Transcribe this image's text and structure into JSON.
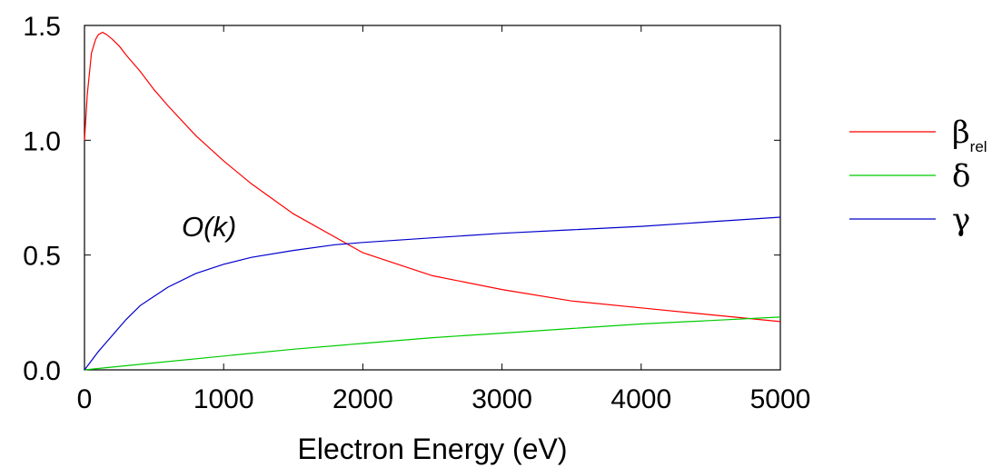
{
  "chart_data": {
    "type": "line",
    "xlabel": "Electron Energy (eV)",
    "ylabel": "",
    "annotation": "O(k)",
    "xlim": [
      0,
      5000
    ],
    "ylim": [
      0,
      1.5
    ],
    "x_ticks": [
      0,
      1000,
      2000,
      3000,
      4000,
      5000
    ],
    "x_tick_labels": [
      "0",
      "1000",
      "2000",
      "3000",
      "4000",
      "5000"
    ],
    "y_ticks": [
      0,
      0.5,
      1.0,
      1.5
    ],
    "y_tick_labels": [
      "0.0",
      "0.5",
      "1.0",
      "1.5"
    ],
    "grid": false,
    "legend_position": "right",
    "series": [
      {
        "name": "β",
        "name_subscript": "rel",
        "color": "#ff0000",
        "x": [
          0,
          20,
          50,
          80,
          100,
          130,
          160,
          200,
          250,
          300,
          400,
          500,
          600,
          800,
          1000,
          1200,
          1500,
          2000,
          2500,
          3000,
          3500,
          4000,
          4500,
          5000
        ],
        "y": [
          1.0,
          1.2,
          1.38,
          1.44,
          1.46,
          1.47,
          1.46,
          1.44,
          1.41,
          1.37,
          1.3,
          1.22,
          1.15,
          1.02,
          0.91,
          0.81,
          0.68,
          0.51,
          0.41,
          0.35,
          0.3,
          0.27,
          0.24,
          0.21
        ]
      },
      {
        "name": "δ",
        "color": "#00cc00",
        "x": [
          0,
          500,
          1000,
          1500,
          2000,
          2500,
          3000,
          3500,
          4000,
          4500,
          5000
        ],
        "y": [
          0.0,
          0.03,
          0.06,
          0.09,
          0.115,
          0.14,
          0.16,
          0.18,
          0.2,
          0.215,
          0.23
        ]
      },
      {
        "name": "γ",
        "color": "#0000cc",
        "x": [
          0,
          50,
          100,
          200,
          300,
          400,
          500,
          600,
          800,
          1000,
          1200,
          1500,
          1800,
          2000,
          2500,
          3000,
          3500,
          4000,
          4500,
          5000
        ],
        "y": [
          0.0,
          0.04,
          0.08,
          0.15,
          0.22,
          0.28,
          0.32,
          0.36,
          0.42,
          0.46,
          0.49,
          0.52,
          0.545,
          0.555,
          0.575,
          0.595,
          0.61,
          0.625,
          0.645,
          0.665
        ]
      }
    ]
  }
}
